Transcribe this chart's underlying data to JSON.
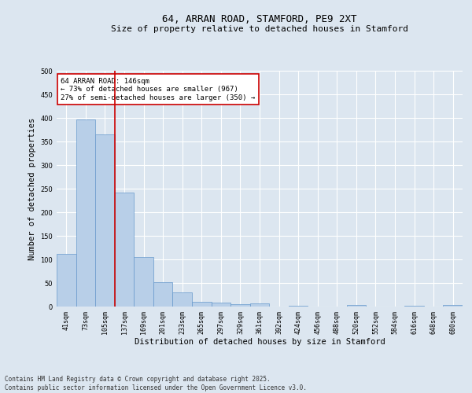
{
  "title": "64, ARRAN ROAD, STAMFORD, PE9 2XT",
  "subtitle": "Size of property relative to detached houses in Stamford",
  "xlabel": "Distribution of detached houses by size in Stamford",
  "ylabel": "Number of detached properties",
  "categories": [
    "41sqm",
    "73sqm",
    "105sqm",
    "137sqm",
    "169sqm",
    "201sqm",
    "233sqm",
    "265sqm",
    "297sqm",
    "329sqm",
    "361sqm",
    "392sqm",
    "424sqm",
    "456sqm",
    "488sqm",
    "520sqm",
    "552sqm",
    "584sqm",
    "616sqm",
    "648sqm",
    "680sqm"
  ],
  "values": [
    112,
    397,
    365,
    242,
    105,
    51,
    30,
    10,
    8,
    5,
    7,
    0,
    1,
    0,
    0,
    3,
    0,
    0,
    1,
    0,
    3
  ],
  "bar_color": "#b8cfe8",
  "bar_edge_color": "#6699cc",
  "vline_x": 3,
  "vline_color": "#cc0000",
  "annotation_text": "64 ARRAN ROAD: 146sqm\n← 73% of detached houses are smaller (967)\n27% of semi-detached houses are larger (350) →",
  "annotation_box_color": "#ffffff",
  "annotation_box_edge_color": "#cc0000",
  "ylim": [
    0,
    500
  ],
  "yticks": [
    0,
    50,
    100,
    150,
    200,
    250,
    300,
    350,
    400,
    450,
    500
  ],
  "footer": "Contains HM Land Registry data © Crown copyright and database right 2025.\nContains public sector information licensed under the Open Government Licence v3.0.",
  "background_color": "#dce6f0",
  "plot_bg_color": "#dce6f0",
  "grid_color": "#ffffff",
  "title_fontsize": 9,
  "subtitle_fontsize": 8,
  "axis_label_fontsize": 7.5,
  "tick_fontsize": 6,
  "annotation_fontsize": 6.5,
  "footer_fontsize": 5.5
}
